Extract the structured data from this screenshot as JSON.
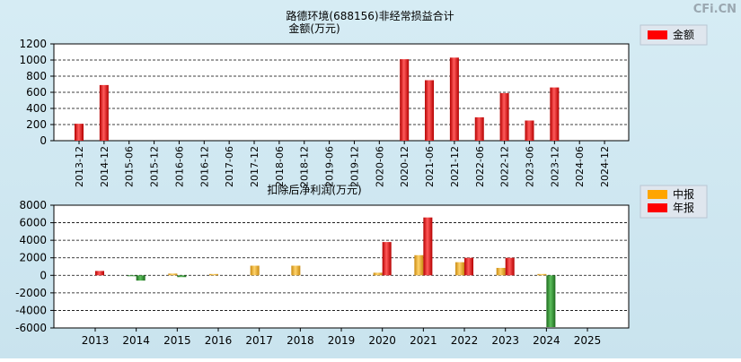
{
  "watermark": "CFi.CN",
  "colors": {
    "annual": "#ff0000",
    "interim": "#ffa500",
    "negative": "#2e8b2e",
    "plot_bg": "#ffffff"
  },
  "chart_data": [
    {
      "type": "bar",
      "title": "路德环境(688156)非经常损益合计",
      "subtitle": "金额(万元)",
      "legend": [
        {
          "name": "金额",
          "color": "#ff0000"
        }
      ],
      "legend_position": "top-right",
      "categories": [
        "2013-12",
        "2014-12",
        "2015-06",
        "2015-12",
        "2016-06",
        "2016-12",
        "2017-06",
        "2017-12",
        "2018-06",
        "2018-12",
        "2019-06",
        "2019-12",
        "2020-06",
        "2020-12",
        "2021-06",
        "2021-12",
        "2022-06",
        "2022-12",
        "2023-06",
        "2023-12",
        "2024-06",
        "2024-12"
      ],
      "series": [
        {
          "name": "金额",
          "values": [
            210,
            690,
            null,
            null,
            null,
            null,
            null,
            null,
            null,
            null,
            null,
            null,
            null,
            1010,
            750,
            1030,
            290,
            590,
            250,
            660,
            null,
            null
          ]
        }
      ],
      "ylim": [
        0,
        1200
      ],
      "yticks": [
        0,
        200,
        400,
        600,
        800,
        1000,
        1200
      ],
      "grid": true
    },
    {
      "type": "bar",
      "title": "扣除后净利润(万元)",
      "legend": [
        {
          "name": "中报",
          "color": "#ffa500"
        },
        {
          "name": "年报",
          "color": "#ff0000"
        }
      ],
      "legend_position": "top-right",
      "categories": [
        "2013",
        "2014",
        "2015",
        "2016",
        "2017",
        "2018",
        "2019",
        "2020",
        "2021",
        "2022",
        "2023",
        "2024",
        "2025"
      ],
      "series": [
        {
          "name": "中报",
          "values": [
            null,
            -100,
            200,
            150,
            1100,
            1100,
            null,
            300,
            2300,
            1500,
            850,
            150,
            null
          ]
        },
        {
          "name": "年报",
          "values": [
            500,
            -600,
            -200,
            null,
            null,
            null,
            null,
            3800,
            6600,
            2000,
            2000,
            -5900,
            null
          ]
        }
      ],
      "ylim": [
        -6000,
        8000
      ],
      "yticks": [
        -6000,
        -4000,
        -2000,
        0,
        2000,
        4000,
        6000,
        8000
      ],
      "grid": true
    }
  ]
}
